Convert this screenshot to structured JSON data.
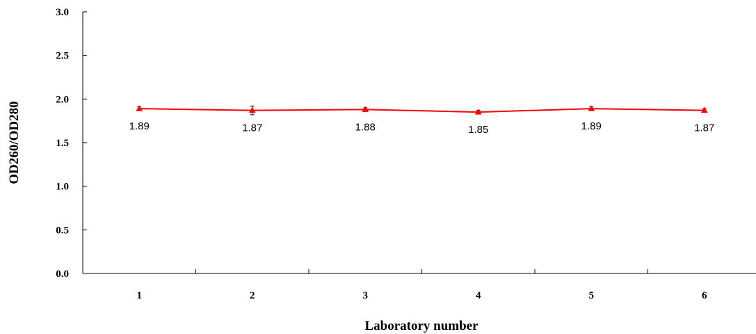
{
  "chart_data": {
    "type": "line",
    "title": "",
    "xlabel": "Laboratory number",
    "ylabel": "OD260/OD280",
    "categories": [
      "1",
      "2",
      "3",
      "4",
      "5",
      "6"
    ],
    "series": [
      {
        "values": [
          1.89,
          1.87,
          1.88,
          1.85,
          1.89,
          1.87
        ],
        "error": [
          0.02,
          0.05,
          0.02,
          0.02,
          0.02,
          0.02
        ],
        "data_labels": [
          "1.89",
          "1.87",
          "1.88",
          "1.85",
          "1.89",
          "1.87"
        ],
        "color": "#ff0000",
        "marker": "triangle"
      }
    ],
    "ylim": [
      0,
      3.0
    ],
    "yticks": [
      "0.0",
      "0.5",
      "1.0",
      "1.5",
      "2.0",
      "2.5",
      "3.0"
    ],
    "grid": false,
    "legend": "none"
  }
}
